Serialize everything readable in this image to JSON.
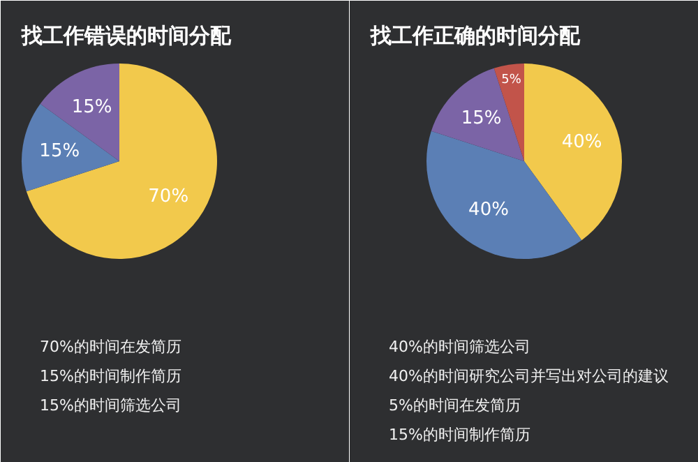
{
  "chart_data": [
    {
      "type": "pie",
      "title": "找工作错误的时间分配",
      "categories": [
        null,
        null,
        null
      ],
      "values": [
        70,
        15,
        15
      ],
      "colors": [
        "#f2c94c",
        "#5b7fb5",
        "#7b64a6"
      ],
      "value_labels": [
        "70%",
        "15%",
        "15%"
      ],
      "annotations": [
        "70%的时间在发简历",
        "15%的时间制作简历",
        "15%的时间筛选公司"
      ]
    },
    {
      "type": "pie",
      "title": "找工作正确的时间分配",
      "categories": [
        null,
        null,
        null,
        null
      ],
      "values": [
        40,
        40,
        15,
        5
      ],
      "colors": [
        "#f2c94c",
        "#5b7fb5",
        "#7b64a6",
        "#c2544a"
      ],
      "value_labels": [
        "40%",
        "40%",
        "15%",
        "5%"
      ],
      "annotations": [
        "40%的时间筛选公司",
        "40%的时间研究公司并写出对公司的建议",
        "5%的时间在发简历",
        "15%的时间制作简历"
      ]
    }
  ]
}
